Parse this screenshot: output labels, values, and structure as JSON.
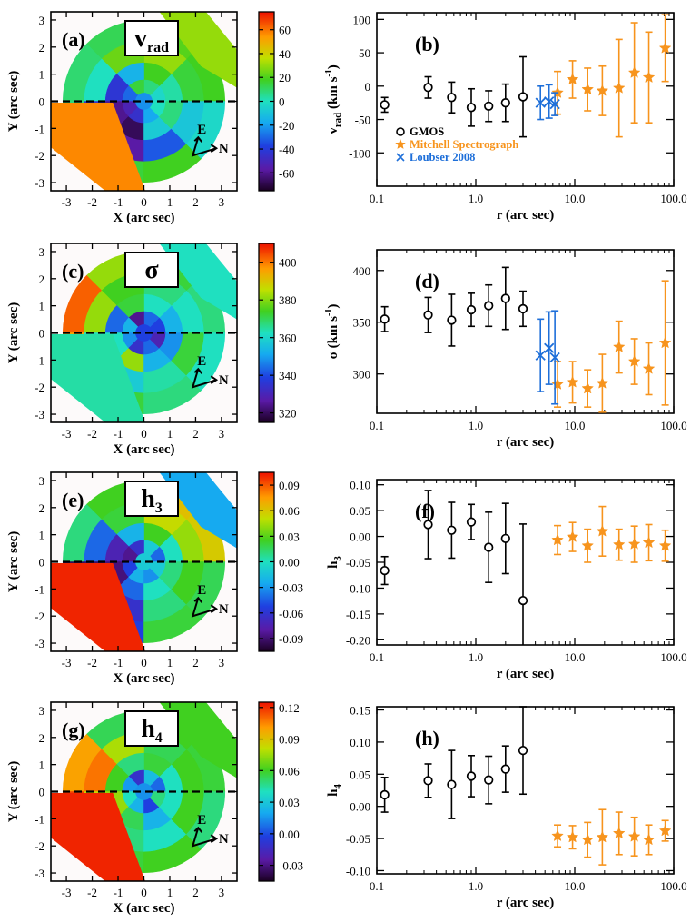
{
  "colors": {
    "gmos": "#000000",
    "mitchell": "#F7941D",
    "loubser": "#1E6FD9",
    "dashed_line": "#000000"
  },
  "map_panels": [
    {
      "panel": "(a)",
      "symbol": "v",
      "symbol_sub": "rad",
      "colorbar": {
        "ticks": [
          "60",
          "40",
          "20",
          "0",
          "-20",
          "-40",
          "-60"
        ],
        "range": [
          -75,
          75
        ]
      },
      "xlabel": "X  (arc sec)",
      "ylabel": "Y  (arc sec)",
      "xticks": [
        "-3",
        "-2",
        "-1",
        "0",
        "1",
        "2",
        "3"
      ],
      "yticks": [
        "3",
        "2",
        "1",
        "0",
        "-1",
        "-2",
        "-3"
      ],
      "compass": {
        "e": "E",
        "n": "N"
      }
    },
    {
      "panel": "(c)",
      "symbol": "σ",
      "symbol_sub": "",
      "colorbar": {
        "ticks": [
          "400",
          "380",
          "360",
          "340",
          "320"
        ],
        "range": [
          315,
          410
        ]
      },
      "xlabel": "X  (arc sec)",
      "ylabel": "Y  (arc sec)",
      "xticks": [
        "-3",
        "-2",
        "-1",
        "0",
        "1",
        "2",
        "3"
      ],
      "yticks": [
        "3",
        "2",
        "1",
        "0",
        "-1",
        "-2",
        "-3"
      ],
      "compass": {
        "e": "E",
        "n": "N"
      }
    },
    {
      "panel": "(e)",
      "symbol": "h",
      "symbol_sub": "3",
      "colorbar": {
        "ticks": [
          "0.09",
          "0.06",
          "0.03",
          "0.00",
          "-0.03",
          "-0.06",
          "-0.09"
        ],
        "range": [
          -0.105,
          0.105
        ]
      },
      "xlabel": "X  (arc sec)",
      "ylabel": "Y  (arc sec)",
      "xticks": [
        "-3",
        "-2",
        "-1",
        "0",
        "1",
        "2",
        "3"
      ],
      "yticks": [
        "3",
        "2",
        "1",
        "0",
        "-1",
        "-2",
        "-3"
      ],
      "compass": {
        "e": "E",
        "n": "N"
      }
    },
    {
      "panel": "(g)",
      "symbol": "h",
      "symbol_sub": "4",
      "colorbar": {
        "ticks": [
          "0.12",
          "0.09",
          "0.06",
          "0.03",
          "0.00",
          "-0.03"
        ],
        "range": [
          -0.045,
          0.125
        ]
      },
      "xlabel": "X  (arc sec)",
      "ylabel": "Y  (arc sec)",
      "xticks": [
        "-3",
        "-2",
        "-1",
        "0",
        "1",
        "2",
        "3"
      ],
      "yticks": [
        "3",
        "2",
        "1",
        "0",
        "-1",
        "-2",
        "-3"
      ],
      "compass": {
        "e": "E",
        "n": "N"
      }
    }
  ],
  "chart_data": [
    {
      "type": "scatter",
      "panel": "(b)",
      "xscale": "log",
      "xlabel": "r  (arc sec)",
      "ylabel_base": "v",
      "ylabel_sub": "rad",
      "ylabel_unit": " (km s",
      "ylabel_sup": "-1",
      "ylabel_close": ")",
      "xlim": [
        0.1,
        100
      ],
      "ylim": [
        -150,
        110
      ],
      "xticks": [
        {
          "v": 0.1,
          "t": "0.1"
        },
        {
          "v": 1,
          "t": "1.0"
        },
        {
          "v": 10,
          "t": "10.0"
        },
        {
          "v": 100,
          "t": "100.0"
        }
      ],
      "yticks": [
        {
          "v": 100,
          "t": "100"
        },
        {
          "v": 50,
          "t": "50"
        },
        {
          "v": 0,
          "t": "0"
        },
        {
          "v": -50,
          "t": "-50"
        },
        {
          "v": -100,
          "t": "-100"
        }
      ],
      "legend": [
        {
          "name": "GMOS",
          "marker": "circle",
          "color": "#000000"
        },
        {
          "name": "Mitchell Spectrograph",
          "marker": "star",
          "color": "#F7941D"
        },
        {
          "name": "Loubser 2008",
          "marker": "x",
          "color": "#1E6FD9"
        }
      ],
      "series": [
        {
          "name": "GMOS",
          "marker": "circle",
          "color": "#000000",
          "x": [
            0.12,
            0.33,
            0.57,
            0.9,
            1.35,
            2.0,
            3.0
          ],
          "y": [
            -28,
            -2,
            -17,
            -32,
            -30,
            -25,
            -16
          ],
          "err": [
            11,
            16,
            23,
            28,
            23,
            28,
            60
          ]
        },
        {
          "name": "Mitchell Spectrograph",
          "marker": "star",
          "color": "#F7941D",
          "x": [
            6.7,
            9.5,
            13.5,
            19.0,
            28.0,
            40.0,
            56.0,
            82.0
          ],
          "y": [
            -10,
            10,
            -5,
            -7,
            -3,
            20,
            13,
            57
          ],
          "err": [
            32,
            28,
            32,
            37,
            73,
            75,
            68,
            50
          ]
        },
        {
          "name": "Loubser 2008",
          "marker": "x",
          "color": "#1E6FD9",
          "x": [
            4.5,
            5.5,
            6.3
          ],
          "y": [
            -25,
            -23,
            -27
          ],
          "err": [
            25,
            25,
            17
          ]
        }
      ]
    },
    {
      "type": "scatter",
      "panel": "(d)",
      "xscale": "log",
      "xlabel": "r  (arc sec)",
      "ylabel_base": "σ",
      "ylabel_sub": "",
      "ylabel_unit": " (km s",
      "ylabel_sup": "-1",
      "ylabel_close": ")",
      "xlim": [
        0.1,
        100
      ],
      "ylim": [
        262,
        420
      ],
      "xticks": [
        {
          "v": 0.1,
          "t": "0.1"
        },
        {
          "v": 1,
          "t": "1.0"
        },
        {
          "v": 10,
          "t": "10.0"
        },
        {
          "v": 100,
          "t": "100.0"
        }
      ],
      "yticks": [
        {
          "v": 400,
          "t": "400"
        },
        {
          "v": 350,
          "t": "350"
        },
        {
          "v": 300,
          "t": "300"
        }
      ],
      "series": [
        {
          "name": "GMOS",
          "marker": "circle",
          "color": "#000000",
          "x": [
            0.12,
            0.33,
            0.57,
            0.9,
            1.35,
            2.0,
            3.0
          ],
          "y": [
            353,
            357,
            352,
            362,
            366,
            373,
            363
          ],
          "err": [
            12,
            17,
            25,
            16,
            20,
            30,
            17
          ]
        },
        {
          "name": "Mitchell Spectrograph",
          "marker": "star",
          "color": "#F7941D",
          "x": [
            6.7,
            9.5,
            13.5,
            19.0,
            28.0,
            40.0,
            56.0,
            82.0
          ],
          "y": [
            290,
            292,
            286,
            291,
            326,
            312,
            305,
            330
          ],
          "err": [
            22,
            20,
            18,
            28,
            25,
            22,
            25,
            60
          ]
        },
        {
          "name": "Loubser 2008",
          "marker": "x",
          "color": "#1E6FD9",
          "x": [
            4.5,
            5.5,
            6.3
          ],
          "y": [
            318,
            325,
            316
          ],
          "err": [
            35,
            35,
            45
          ]
        }
      ]
    },
    {
      "type": "scatter",
      "panel": "(f)",
      "xscale": "log",
      "xlabel": "r  (arc sec)",
      "ylabel_base": "h",
      "ylabel_sub": "3",
      "ylabel_unit": "",
      "ylabel_sup": "",
      "ylabel_close": "",
      "xlim": [
        0.1,
        100
      ],
      "ylim": [
        -0.21,
        0.11
      ],
      "xticks": [
        {
          "v": 0.1,
          "t": "0.1"
        },
        {
          "v": 1,
          "t": "1.0"
        },
        {
          "v": 10,
          "t": "10.0"
        },
        {
          "v": 100,
          "t": "100.0"
        }
      ],
      "yticks": [
        {
          "v": 0.1,
          "t": "0.10"
        },
        {
          "v": 0.05,
          "t": "0.05"
        },
        {
          "v": 0.0,
          "t": "0.00"
        },
        {
          "v": -0.05,
          "t": "-0.05"
        },
        {
          "v": -0.1,
          "t": "-0.10"
        },
        {
          "v": -0.15,
          "t": "-0.15"
        },
        {
          "v": -0.2,
          "t": "-0.20"
        }
      ],
      "series": [
        {
          "name": "GMOS",
          "marker": "circle",
          "color": "#000000",
          "x": [
            0.12,
            0.33,
            0.57,
            0.9,
            1.35,
            2.0,
            3.0
          ],
          "y": [
            -0.066,
            0.023,
            0.012,
            0.028,
            -0.021,
            -0.004,
            -0.124
          ],
          "err": [
            0.027,
            0.066,
            0.054,
            0.034,
            0.068,
            0.068,
            0.148
          ]
        },
        {
          "name": "Mitchell Spectrograph",
          "marker": "star",
          "color": "#F7941D",
          "x": [
            6.7,
            9.5,
            13.5,
            19.0,
            28.0,
            40.0,
            56.0,
            82.0
          ],
          "y": [
            -0.007,
            -0.001,
            -0.018,
            0.01,
            -0.016,
            -0.015,
            -0.012,
            -0.018
          ],
          "err": [
            0.028,
            0.028,
            0.032,
            0.048,
            0.03,
            0.035,
            0.035,
            0.03
          ]
        }
      ]
    },
    {
      "type": "scatter",
      "panel": "(h)",
      "xscale": "log",
      "xlabel": "r  (arc sec)",
      "ylabel_base": "h",
      "ylabel_sub": "4",
      "ylabel_unit": "",
      "ylabel_sup": "",
      "ylabel_close": "",
      "xlim": [
        0.1,
        100
      ],
      "ylim": [
        -0.105,
        0.155
      ],
      "xticks": [
        {
          "v": 0.1,
          "t": "0.1"
        },
        {
          "v": 1,
          "t": "1.0"
        },
        {
          "v": 10,
          "t": "10.0"
        },
        {
          "v": 100,
          "t": "100.0"
        }
      ],
      "yticks": [
        {
          "v": 0.15,
          "t": "0.15"
        },
        {
          "v": 0.1,
          "t": "0.10"
        },
        {
          "v": 0.05,
          "t": "0.05"
        },
        {
          "v": 0.0,
          "t": "0.00"
        },
        {
          "v": -0.05,
          "t": "-0.05"
        },
        {
          "v": -0.1,
          "t": "-0.10"
        }
      ],
      "series": [
        {
          "name": "GMOS",
          "marker": "circle",
          "color": "#000000",
          "x": [
            0.12,
            0.33,
            0.57,
            0.9,
            1.35,
            2.0,
            3.0
          ],
          "y": [
            0.018,
            0.04,
            0.034,
            0.047,
            0.041,
            0.058,
            0.087
          ],
          "err": [
            0.027,
            0.026,
            0.053,
            0.032,
            0.037,
            0.036,
            0.068
          ]
        },
        {
          "name": "Mitchell Spectrograph",
          "marker": "star",
          "color": "#F7941D",
          "x": [
            6.7,
            9.5,
            13.5,
            19.0,
            28.0,
            40.0,
            56.0,
            82.0
          ],
          "y": [
            -0.046,
            -0.048,
            -0.052,
            -0.048,
            -0.042,
            -0.047,
            -0.052,
            -0.038
          ],
          "err": [
            0.017,
            0.018,
            0.027,
            0.043,
            0.033,
            0.03,
            0.023,
            0.016
          ]
        }
      ]
    }
  ]
}
